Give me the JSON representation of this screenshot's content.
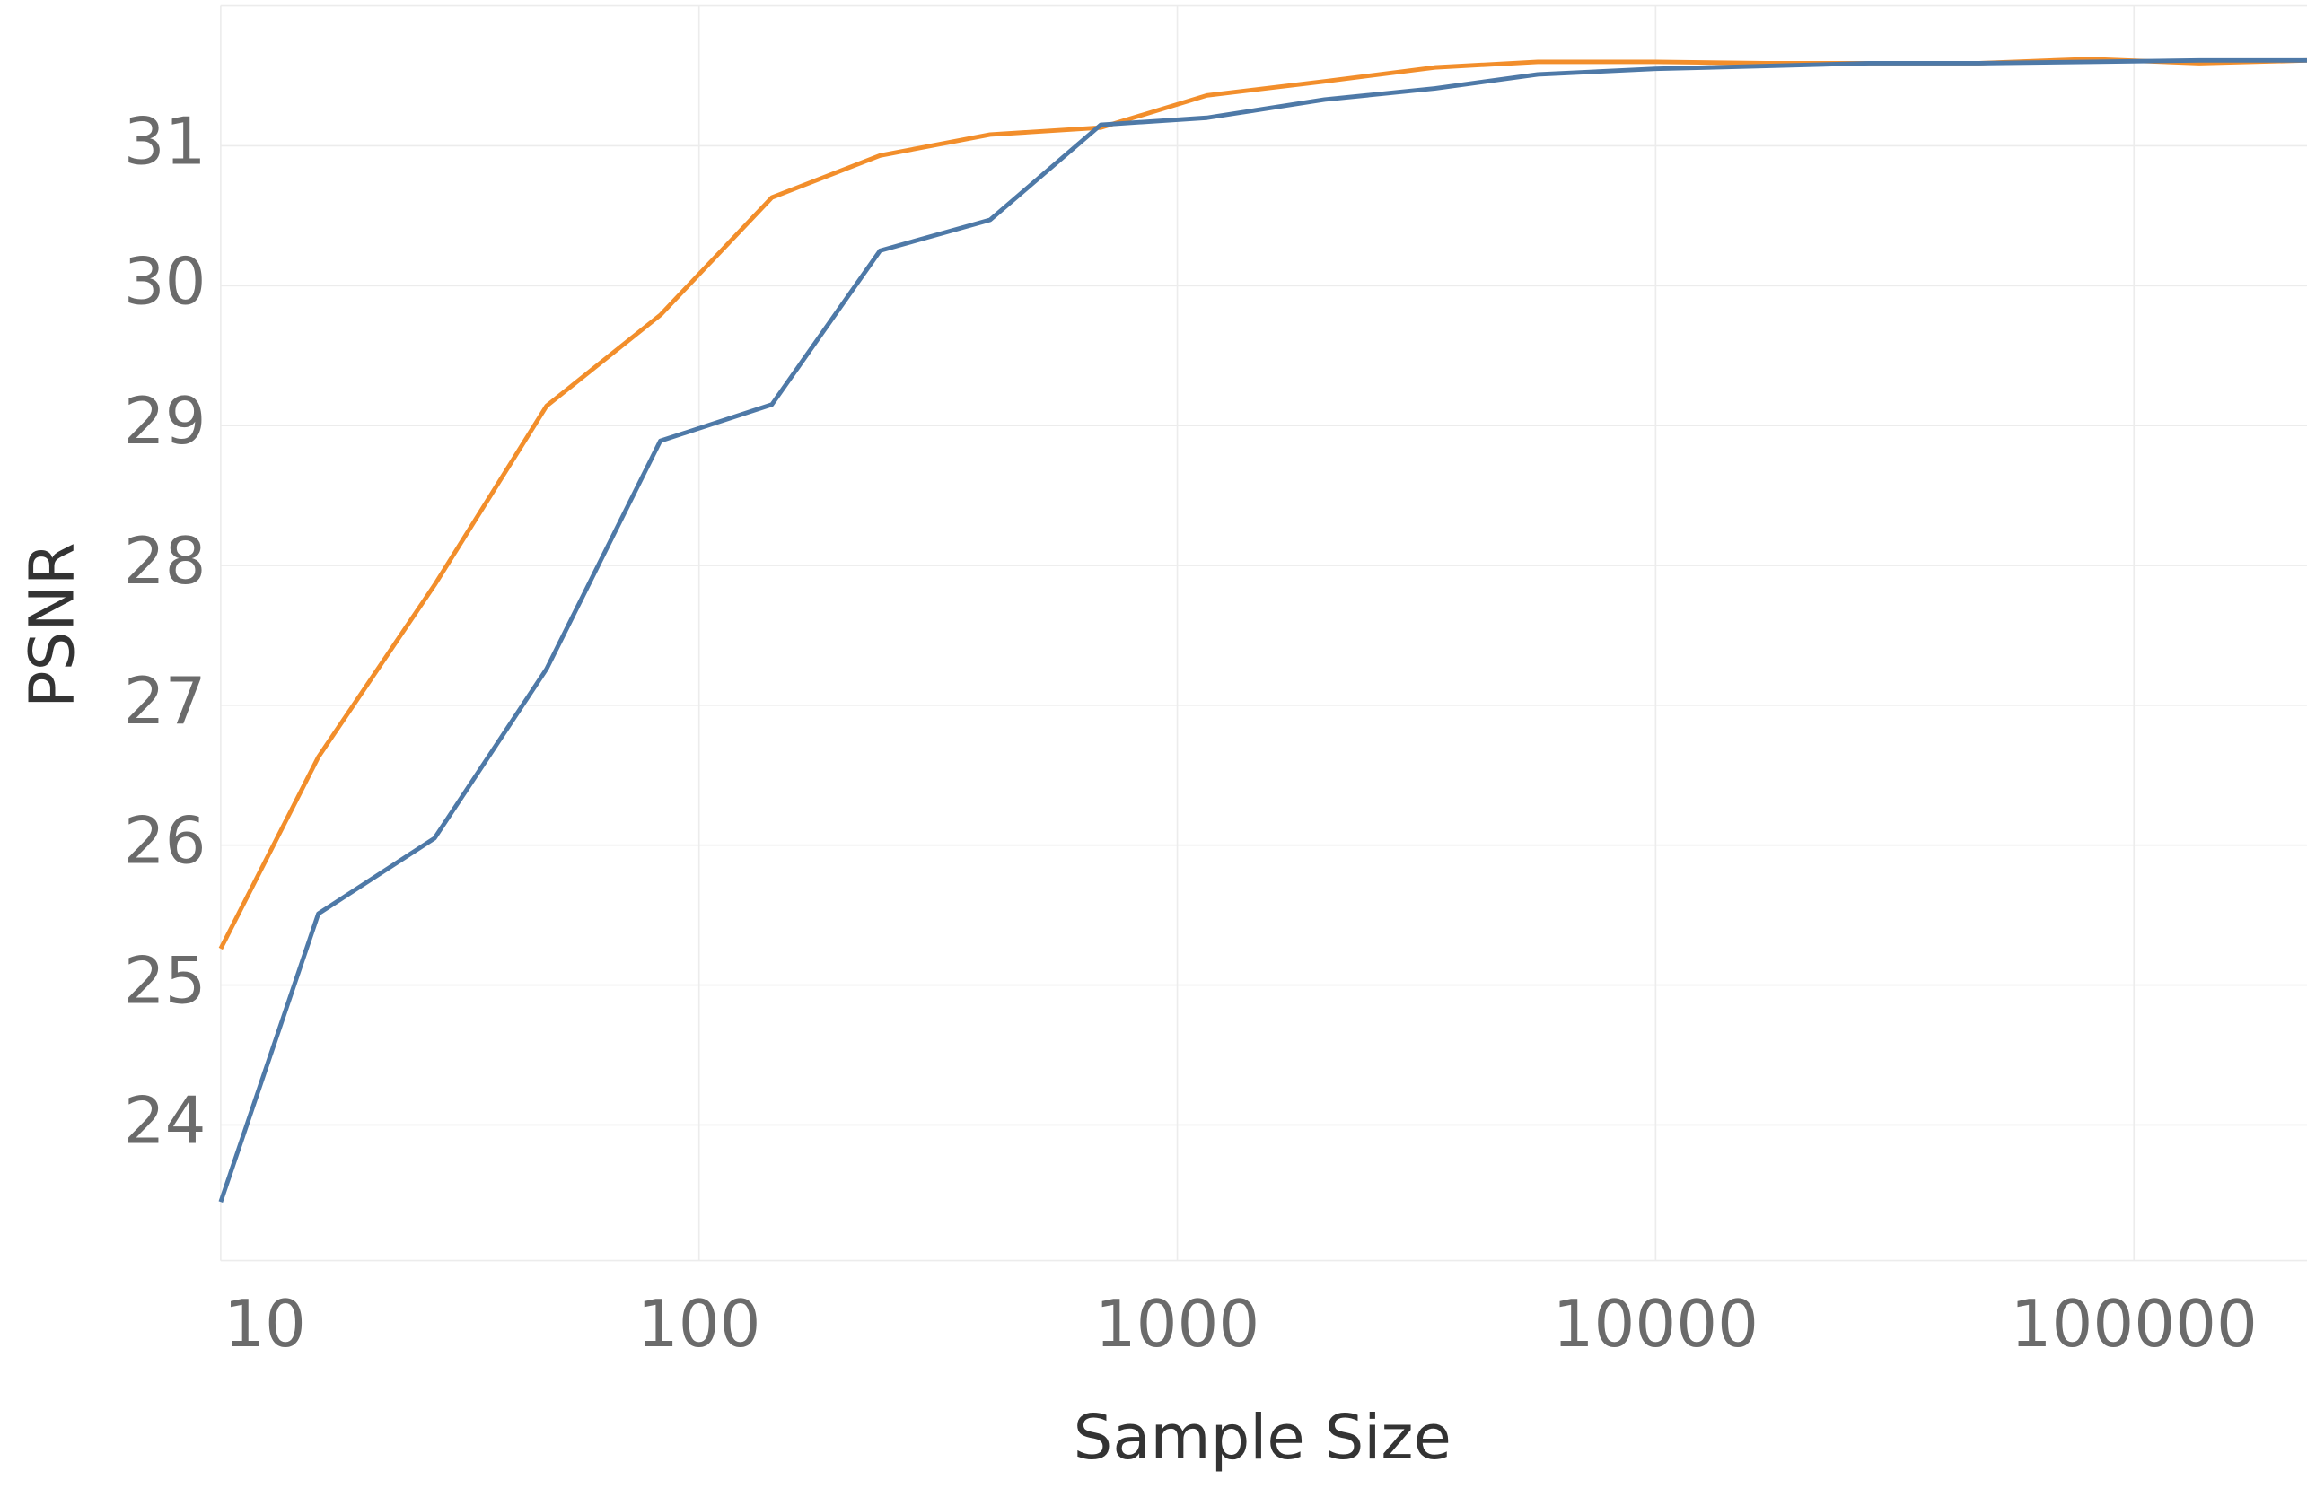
{
  "chart_data": {
    "type": "line",
    "x_label": "Sample Size",
    "y_label": "PSNR",
    "x": [
      10,
      16,
      28,
      48,
      83,
      142,
      239,
      406,
      692,
      1153,
      2032,
      3455,
      5670,
      10000,
      17000,
      27900,
      47500,
      80900,
      137000,
      230000
    ],
    "series": [
      {
        "color": "#f28e2b",
        "values": [
          25.26,
          26.63,
          27.86,
          29.14,
          29.79,
          30.63,
          30.93,
          31.08,
          31.13,
          31.36,
          31.46,
          31.56,
          31.6,
          31.6,
          31.59,
          31.59,
          31.59,
          31.62,
          31.59,
          31.61
        ]
      },
      {
        "color": "#4e79a7",
        "values": [
          23.45,
          25.51,
          26.05,
          27.26,
          28.89,
          29.15,
          30.25,
          30.47,
          31.15,
          31.2,
          31.33,
          31.41,
          31.51,
          31.55,
          31.57,
          31.59,
          31.59,
          31.6,
          31.61,
          31.61
        ]
      }
    ],
    "xscale": "log",
    "xlim": [
      10,
      230000
    ],
    "xticks": [
      10,
      100,
      1000,
      10000,
      100000
    ],
    "ylim": [
      23.03,
      32.0
    ],
    "yticks": [
      24,
      25,
      26,
      27,
      28,
      29,
      30,
      31
    ],
    "grid": true
  }
}
